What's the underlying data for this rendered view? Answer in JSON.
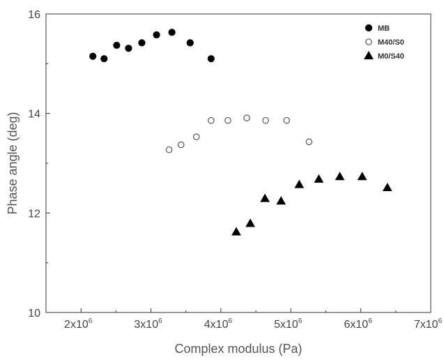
{
  "chart_data": {
    "type": "scatter",
    "title": "",
    "xlabel": "Complex modulus (Pa)",
    "ylabel": "Phase angle (deg)",
    "xlim": [
      1500000,
      7000000
    ],
    "ylim": [
      10,
      16
    ],
    "grid": false,
    "legend_position": "top-right",
    "x_ticks": [
      {
        "value": 2000000,
        "base": "2x10",
        "exp": "6"
      },
      {
        "value": 3000000,
        "base": "3x10",
        "exp": "6"
      },
      {
        "value": 4000000,
        "base": "4x10",
        "exp": "6"
      },
      {
        "value": 5000000,
        "base": "5x10",
        "exp": "6"
      },
      {
        "value": 6000000,
        "base": "6x10",
        "exp": "6"
      },
      {
        "value": 7000000,
        "base": "7x10",
        "exp": "6"
      }
    ],
    "y_ticks": [
      {
        "value": 10,
        "label": "10"
      },
      {
        "value": 12,
        "label": "12"
      },
      {
        "value": 14,
        "label": "14"
      },
      {
        "value": 16,
        "label": "16"
      }
    ],
    "series": [
      {
        "name": "MB",
        "marker": "filled-circle",
        "color": "#000000",
        "points": [
          [
            2170000,
            15.15
          ],
          [
            2330000,
            15.1
          ],
          [
            2510000,
            15.37
          ],
          [
            2680000,
            15.31
          ],
          [
            2870000,
            15.42
          ],
          [
            3080000,
            15.58
          ],
          [
            3300000,
            15.63
          ],
          [
            3560000,
            15.42
          ],
          [
            3860000,
            15.1
          ]
        ]
      },
      {
        "name": "M40/S0",
        "marker": "open-circle",
        "color": "#000000",
        "points": [
          [
            3260000,
            13.27
          ],
          [
            3430000,
            13.37
          ],
          [
            3650000,
            13.53
          ],
          [
            3860000,
            13.86
          ],
          [
            4100000,
            13.86
          ],
          [
            4370000,
            13.91
          ],
          [
            4640000,
            13.86
          ],
          [
            4940000,
            13.86
          ],
          [
            5260000,
            13.43
          ]
        ]
      },
      {
        "name": "M0/S40",
        "marker": "filled-triangle",
        "color": "#000000",
        "points": [
          [
            4220000,
            11.62
          ],
          [
            4420000,
            11.79
          ],
          [
            4630000,
            12.29
          ],
          [
            4860000,
            12.24
          ],
          [
            5120000,
            12.57
          ],
          [
            5400000,
            12.68
          ],
          [
            5700000,
            12.73
          ],
          [
            6020000,
            12.73
          ],
          [
            6380000,
            12.51
          ]
        ]
      }
    ]
  }
}
